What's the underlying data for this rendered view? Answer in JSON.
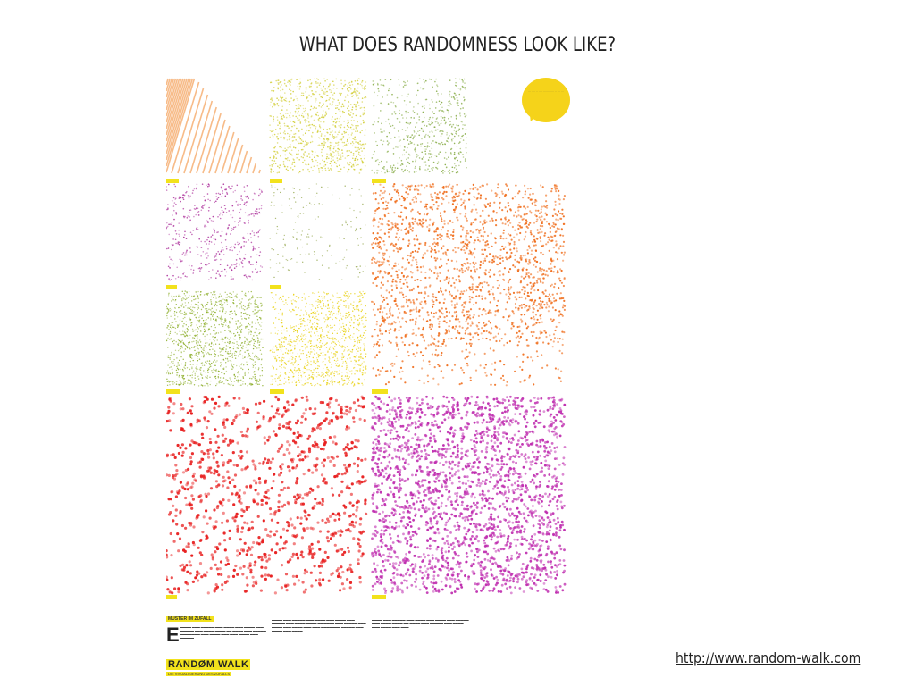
{
  "slide": {
    "title": "WHAT DOES RANDOMNESS LOOK LIKE?",
    "source_url": "http://www.random-walk.com"
  },
  "poster": {
    "section_label": "MUSTER IM ZUFALL",
    "drop_cap": "E",
    "title": "RANDØM WALK",
    "subtitle": "DIE VISUALISIERUNG DES ZUFALLS",
    "accent_color": "#f2e21c",
    "panels": [
      {
        "color": "#f4a460",
        "pattern": "diagonal-lines"
      },
      {
        "color": "#d4d040",
        "pattern": "dense-uniform"
      },
      {
        "color": "#8db050",
        "pattern": "sparse-triangle"
      },
      {
        "color": "#b03aa0",
        "pattern": "diagonal-bands"
      },
      {
        "color": "#a0b060",
        "pattern": "sparse-grid"
      },
      {
        "color": "#f07020",
        "pattern": "columns"
      },
      {
        "color": "#90b030",
        "pattern": "fine-diagonal"
      },
      {
        "color": "#e8d010",
        "pattern": "fine-diagonal-triangle"
      },
      {
        "color": "#e82020",
        "pattern": "diagonal-bands-large"
      },
      {
        "color": "#c030b0",
        "pattern": "dense-uniform"
      }
    ]
  }
}
